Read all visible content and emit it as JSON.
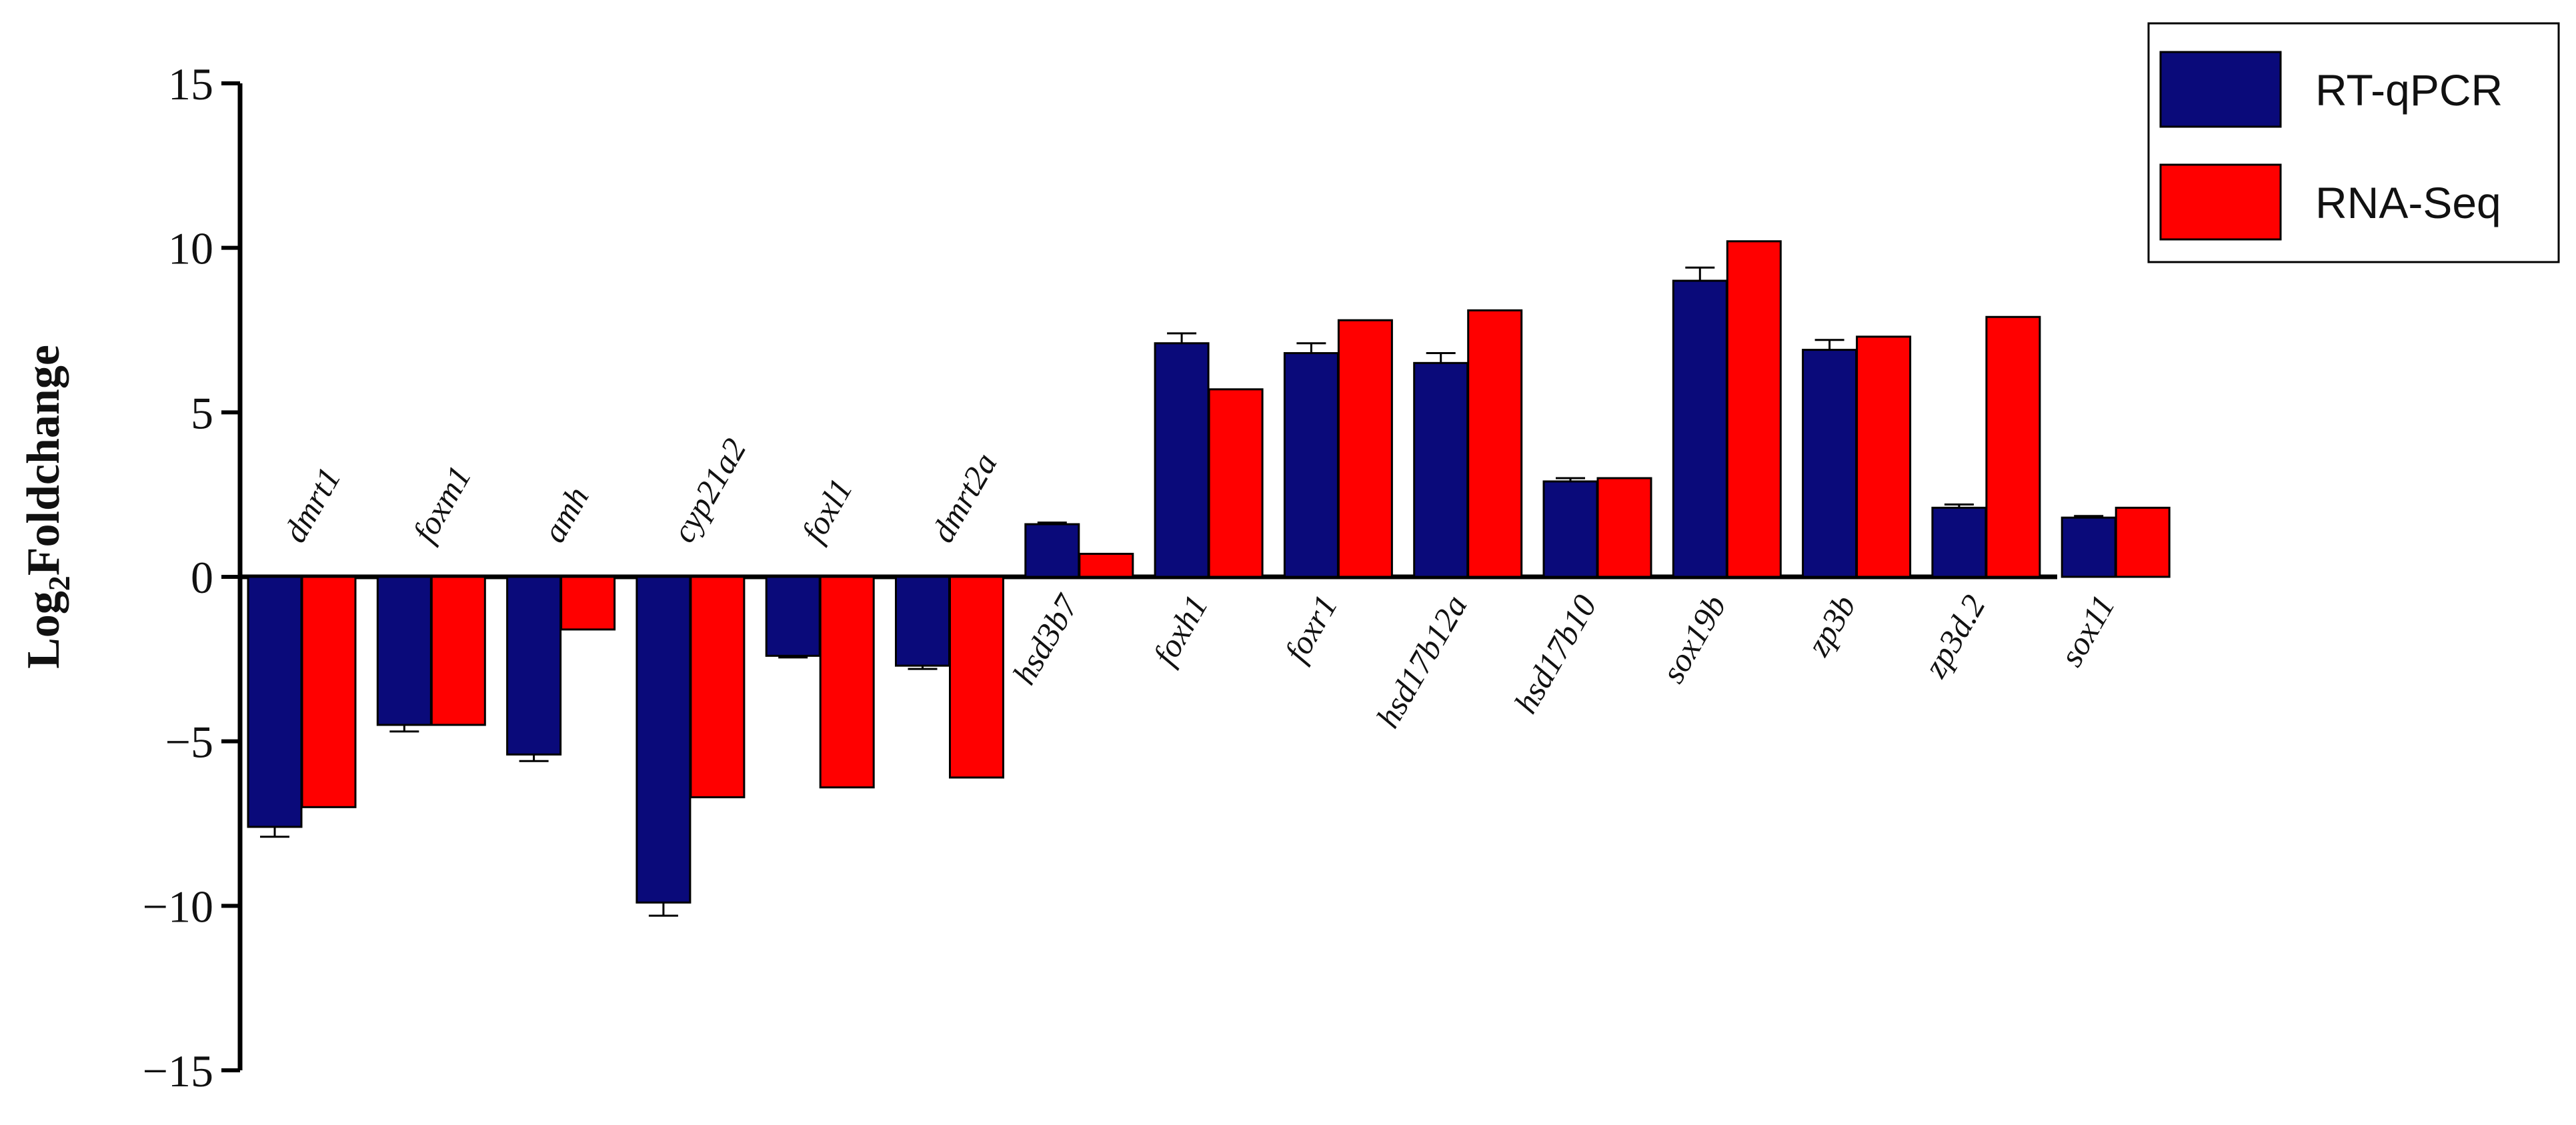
{
  "chart_data": {
    "type": "bar",
    "ylabel_main": "Log",
    "ylabel_sub": "2",
    "ylabel_rest": "Foldchange",
    "ylim": [
      -15,
      15
    ],
    "yticks": [
      15,
      10,
      5,
      0,
      -5,
      -10,
      -15
    ],
    "ytick_labels": [
      "15",
      "10",
      "5",
      "0",
      "−5",
      "−10",
      "−15"
    ],
    "grid": false,
    "legend_position": "top-right",
    "categories": [
      "dmrt1",
      "foxm1",
      "amh",
      "cyp21a2",
      "foxl1",
      "dmrt2a",
      "hsd3b7",
      "foxh1",
      "foxr1",
      "hsd17b12a",
      "hsd17b10",
      "sox19b",
      "zp3b",
      "zp3d.2",
      "sox11"
    ],
    "series": [
      {
        "name": "RT-qPCR",
        "color": "#0a0a7a",
        "values": [
          -7.6,
          -4.5,
          -5.4,
          -9.9,
          -2.4,
          -2.7,
          1.6,
          7.1,
          6.8,
          6.5,
          2.9,
          9.0,
          6.9,
          2.1,
          1.8
        ],
        "errors": [
          0.3,
          0.2,
          0.2,
          0.4,
          0.05,
          0.1,
          0.05,
          0.3,
          0.3,
          0.3,
          0.1,
          0.4,
          0.3,
          0.1,
          0.05
        ]
      },
      {
        "name": "RNA-Seq",
        "color": "#ff0000",
        "values": [
          -7.0,
          -4.5,
          -1.6,
          -6.7,
          -6.4,
          -6.1,
          0.7,
          5.7,
          7.8,
          8.1,
          3.0,
          10.2,
          7.3,
          7.9,
          2.1
        ]
      }
    ]
  }
}
